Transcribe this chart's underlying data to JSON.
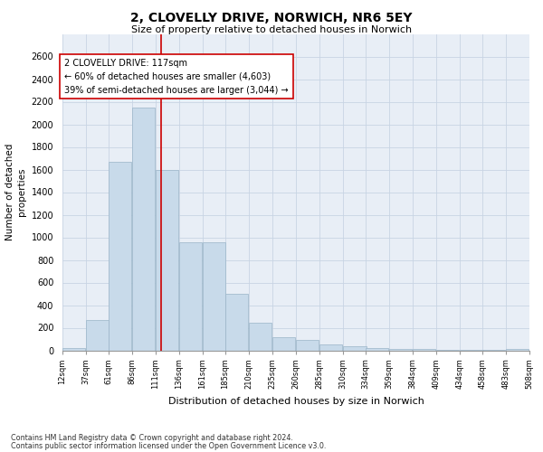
{
  "title": "2, CLOVELLY DRIVE, NORWICH, NR6 5EY",
  "subtitle": "Size of property relative to detached houses in Norwich",
  "xlabel": "Distribution of detached houses by size in Norwich",
  "ylabel": "Number of detached\nproperties",
  "footer_line1": "Contains HM Land Registry data © Crown copyright and database right 2024.",
  "footer_line2": "Contains public sector information licensed under the Open Government Licence v3.0.",
  "bar_color": "#c8daea",
  "bar_edge_color": "#9ab4c8",
  "grid_color": "#c8d4e4",
  "bg_color": "#e8eef6",
  "annotation_line_color": "#cc0000",
  "annotation_box_color": "#cc0000",
  "annotation_text": "2 CLOVELLY DRIVE: 117sqm\n← 60% of detached houses are smaller (4,603)\n39% of semi-detached houses are larger (3,044) →",
  "property_size_x": 117,
  "bin_starts": [
    12,
    37,
    61,
    86,
    111,
    136,
    161,
    185,
    210,
    235,
    260,
    285,
    310,
    334,
    359,
    384,
    409,
    434,
    458,
    483
  ],
  "bin_width": 25,
  "bin_labels": [
    "12sqm",
    "37sqm",
    "61sqm",
    "86sqm",
    "111sqm",
    "136sqm",
    "161sqm",
    "185sqm",
    "210sqm",
    "235sqm",
    "260sqm",
    "285sqm",
    "310sqm",
    "334sqm",
    "359sqm",
    "384sqm",
    "409sqm",
    "434sqm",
    "458sqm",
    "483sqm",
    "508sqm"
  ],
  "counts": [
    20,
    270,
    1670,
    2150,
    1600,
    960,
    960,
    500,
    245,
    120,
    95,
    55,
    35,
    20,
    12,
    12,
    8,
    3,
    2,
    10
  ],
  "ylim": [
    0,
    2800
  ],
  "yticks": [
    0,
    200,
    400,
    600,
    800,
    1000,
    1200,
    1400,
    1600,
    1800,
    2000,
    2200,
    2400,
    2600
  ],
  "xlim_left": 12,
  "xlim_right": 508
}
